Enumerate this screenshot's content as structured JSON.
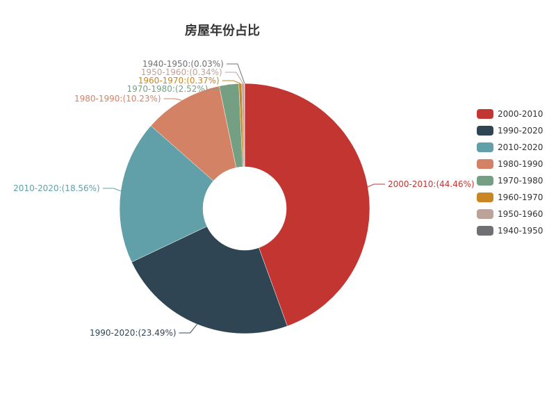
{
  "chart_data": {
    "type": "pie",
    "title": "房屋年份占比",
    "slices": [
      {
        "name": "2000-2010",
        "value": 44.46,
        "label": "2000-2010:(44.46%)",
        "color": "#c23531"
      },
      {
        "name": "1990-2020",
        "value": 23.49,
        "label": "1990-2020:(23.49%)",
        "color": "#2f4554"
      },
      {
        "name": "2010-2020",
        "value": 18.56,
        "label": "2010-2020:(18.56%)",
        "color": "#61a0a8"
      },
      {
        "name": "1980-1990",
        "value": 10.23,
        "label": "1980-1990:(10.23%)",
        "color": "#d48265"
      },
      {
        "name": "1970-1980",
        "value": 2.52,
        "label": "1970-1980:(2.52%)",
        "color": "#749f83"
      },
      {
        "name": "1960-1970",
        "value": 0.37,
        "label": "1960-1970:(0.37%)",
        "color": "#ca8622"
      },
      {
        "name": "1950-1960",
        "value": 0.34,
        "label": "1950-1960:(0.34%)",
        "color": "#bda29a"
      },
      {
        "name": "1940-1950",
        "value": 0.03,
        "label": "1940-1950:(0.03%)",
        "color": "#6e7074"
      }
    ],
    "legend": {
      "position": "right",
      "items": [
        "2000-2010",
        "1990-2020",
        "2010-2020",
        "1980-1990",
        "1970-1980",
        "1960-1970",
        "1950-1960",
        "1940-1950"
      ]
    }
  }
}
